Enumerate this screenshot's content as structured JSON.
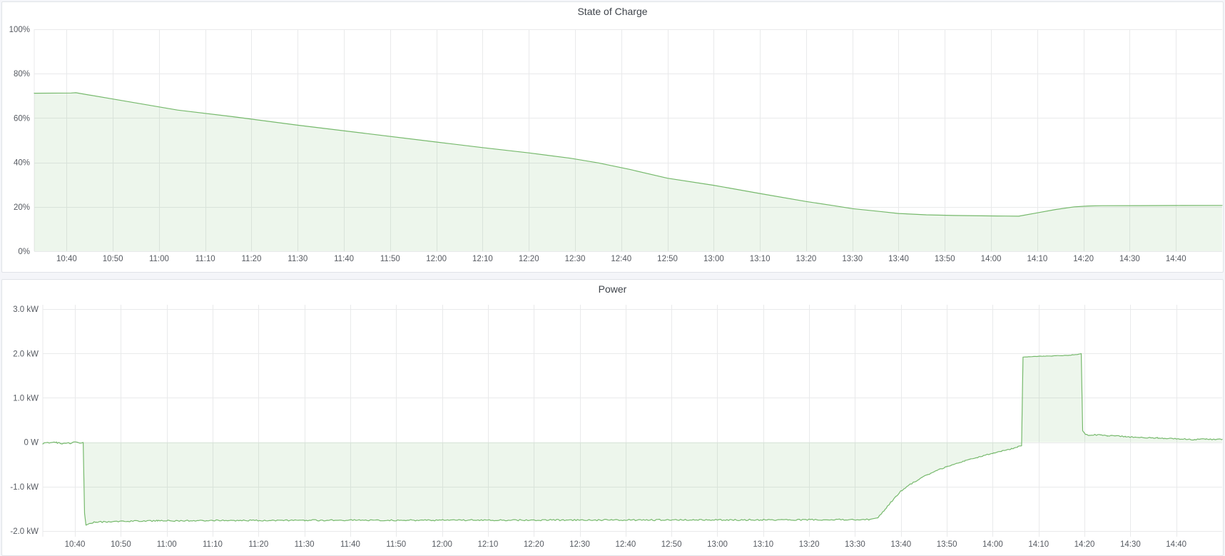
{
  "page": {
    "background": "#f4f5f9",
    "panel_background": "#ffffff",
    "panel_border": "#e0e3e8"
  },
  "panels": {
    "soc": {
      "title": "State of Charge"
    },
    "power": {
      "title": "Power"
    }
  },
  "chart_data": [
    {
      "id": "soc",
      "type": "area",
      "title": "State of Charge",
      "xlabel": "",
      "ylabel": "",
      "x_axis_type": "time",
      "xlim_minutes": [
        633,
        890
      ],
      "ylim": [
        0,
        100
      ],
      "baseline": 0,
      "grid": true,
      "legend": "none",
      "line_color": "#76b96c",
      "fill_color": "rgba(118,185,108,0.13)",
      "grid_color": "#e9eaeb",
      "xticks": [
        "10:40",
        "10:50",
        "11:00",
        "11:10",
        "11:20",
        "11:30",
        "11:40",
        "11:50",
        "12:00",
        "12:10",
        "12:20",
        "12:30",
        "12:40",
        "12:50",
        "13:00",
        "13:10",
        "13:20",
        "13:30",
        "13:40",
        "13:50",
        "14:00",
        "14:10",
        "14:20",
        "14:30",
        "14:40"
      ],
      "yticks": [
        {
          "value": 0,
          "label": "0%"
        },
        {
          "value": 20,
          "label": "20%"
        },
        {
          "value": 40,
          "label": "40%"
        },
        {
          "value": 60,
          "label": "60%"
        },
        {
          "value": 80,
          "label": "80%"
        },
        {
          "value": 100,
          "label": "100%"
        }
      ],
      "series": [
        {
          "name": "State of Charge",
          "unit": "%",
          "points": [
            [
              633,
              71.2
            ],
            [
              641,
              71.3
            ],
            [
              642,
              71.4
            ],
            [
              650,
              68.6
            ],
            [
              664,
              63.6
            ],
            [
              676,
              60.6
            ],
            [
              690,
              56.8
            ],
            [
              705,
              53.0
            ],
            [
              720,
              49.2
            ],
            [
              730,
              46.7
            ],
            [
              740,
              44.3
            ],
            [
              749,
              41.9
            ],
            [
              755,
              39.8
            ],
            [
              762,
              36.8
            ],
            [
              770,
              32.9
            ],
            [
              780,
              29.7
            ],
            [
              790,
              26.0
            ],
            [
              800,
              22.4
            ],
            [
              806,
              20.5
            ],
            [
              810,
              19.2
            ],
            [
              816,
              17.9
            ],
            [
              820,
              17.0
            ],
            [
              826,
              16.4
            ],
            [
              832,
              16.1
            ],
            [
              838,
              15.95
            ],
            [
              843,
              15.85
            ],
            [
              846,
              15.8
            ],
            [
              850,
              17.3
            ],
            [
              854,
              18.8
            ],
            [
              858,
              20.0
            ],
            [
              861,
              20.4
            ],
            [
              864,
              20.5
            ],
            [
              872,
              20.55
            ],
            [
              881,
              20.6
            ],
            [
              890,
              20.65
            ]
          ]
        }
      ],
      "noise_segments": []
    },
    {
      "id": "power",
      "type": "area",
      "title": "Power",
      "xlabel": "",
      "ylabel": "",
      "x_axis_type": "time",
      "xlim_minutes": [
        633,
        890
      ],
      "ylim": [
        -2.13,
        3.1
      ],
      "baseline": 0,
      "grid": true,
      "legend": "none",
      "line_color": "#76b96c",
      "fill_color": "rgba(118,185,108,0.13)",
      "grid_color": "#e9eaeb",
      "xticks": [
        "10:40",
        "10:50",
        "11:00",
        "11:10",
        "11:20",
        "11:30",
        "11:40",
        "11:50",
        "12:00",
        "12:10",
        "12:20",
        "12:30",
        "12:40",
        "12:50",
        "13:00",
        "13:10",
        "13:20",
        "13:30",
        "13:40",
        "13:50",
        "14:00",
        "14:10",
        "14:20",
        "14:30",
        "14:40"
      ],
      "yticks": [
        {
          "value": -2.0,
          "label": "-2.0 kW"
        },
        {
          "value": -1.0,
          "label": "-1.0 kW"
        },
        {
          "value": 0,
          "label": "0 W"
        },
        {
          "value": 1.0,
          "label": "1.0 kW"
        },
        {
          "value": 2.0,
          "label": "2.0 kW"
        },
        {
          "value": 3.0,
          "label": "3.0 kW"
        }
      ],
      "series": [
        {
          "name": "Power",
          "unit": "kW",
          "points": [
            [
              633,
              -0.02
            ],
            [
              636,
              -0.01
            ],
            [
              638,
              -0.03
            ],
            [
              640,
              -0.01
            ],
            [
              641.8,
              -0.02
            ],
            [
              642.1,
              -1.6
            ],
            [
              642.4,
              -1.87
            ],
            [
              643.2,
              -1.83
            ],
            [
              644.5,
              -1.8
            ],
            [
              648,
              -1.79
            ],
            [
              652,
              -1.78
            ],
            [
              658,
              -1.77
            ],
            [
              668,
              -1.765
            ],
            [
              690,
              -1.76
            ],
            [
              740,
              -1.755
            ],
            [
              790,
              -1.75
            ],
            [
              813,
              -1.745
            ],
            [
              815,
              -1.7
            ],
            [
              816.5,
              -1.52
            ],
            [
              818,
              -1.33
            ],
            [
              820,
              -1.1
            ],
            [
              822,
              -0.95
            ],
            [
              824,
              -0.83
            ],
            [
              826,
              -0.72
            ],
            [
              828,
              -0.63
            ],
            [
              830,
              -0.55
            ],
            [
              832,
              -0.48
            ],
            [
              834,
              -0.42
            ],
            [
              836,
              -0.36
            ],
            [
              838,
              -0.3
            ],
            [
              840,
              -0.25
            ],
            [
              842,
              -0.2
            ],
            [
              844,
              -0.15
            ],
            [
              845.5,
              -0.1
            ],
            [
              846.3,
              -0.08
            ],
            [
              846.6,
              1.92
            ],
            [
              848,
              1.93
            ],
            [
              851,
              1.94
            ],
            [
              854,
              1.95
            ],
            [
              856.5,
              1.96
            ],
            [
              858.3,
              1.98
            ],
            [
              859.3,
              2.0
            ],
            [
              859.6,
              0.26
            ],
            [
              860.2,
              0.18
            ],
            [
              861,
              0.16
            ],
            [
              862,
              0.17
            ],
            [
              863.5,
              0.16
            ],
            [
              865,
              0.15
            ],
            [
              867,
              0.14
            ],
            [
              869,
              0.13
            ],
            [
              871,
              0.11
            ],
            [
              873.5,
              0.1
            ],
            [
              876,
              0.1
            ],
            [
              877.5,
              0.08
            ],
            [
              880,
              0.085
            ],
            [
              882,
              0.07
            ],
            [
              884,
              0.06
            ],
            [
              886.5,
              0.075
            ],
            [
              888,
              0.06
            ],
            [
              890,
              0.065
            ]
          ]
        }
      ],
      "noise_segments": [
        {
          "from": 633,
          "to": 641.8,
          "amp": 0.022
        },
        {
          "from": 643.5,
          "to": 813,
          "amp": 0.016
        },
        {
          "from": 815,
          "to": 846,
          "amp": 0.012
        },
        {
          "from": 847,
          "to": 859.2,
          "amp": 0.005
        },
        {
          "from": 860.2,
          "to": 890,
          "amp": 0.013
        }
      ]
    }
  ]
}
